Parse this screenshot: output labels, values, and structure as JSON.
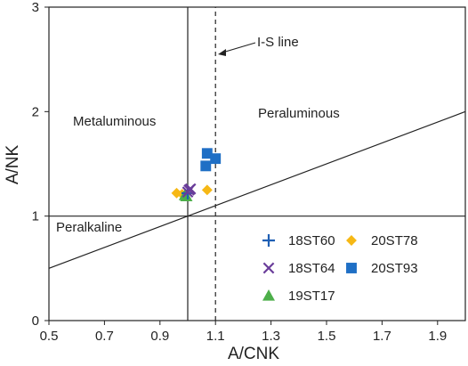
{
  "chart_data": {
    "type": "scatter",
    "xlabel": "A/CNK",
    "ylabel": "A/NK",
    "xlim": [
      0.5,
      2.0
    ],
    "ylim": [
      0,
      3
    ],
    "xticks": [
      0.5,
      0.7,
      0.9,
      1.1,
      1.3,
      1.5,
      1.7,
      1.9
    ],
    "yticks": [
      0,
      1,
      2,
      3
    ],
    "grid": false,
    "regions": {
      "metaluminous": "Metaluminous",
      "peraluminous": "Peraluminous",
      "peralkaline": "Peralkaline"
    },
    "lines": [
      {
        "name": "A/CNK=1",
        "x": [
          1.0,
          1.0
        ],
        "y": [
          0,
          3
        ]
      },
      {
        "name": "A/NK=1",
        "x": [
          0.5,
          2.0
        ],
        "y": [
          1,
          1
        ]
      },
      {
        "name": "diagonal",
        "x": [
          0.5,
          2.0
        ],
        "y": [
          0.5,
          2.0
        ]
      },
      {
        "name": "I-S line",
        "label": "I-S line",
        "x": [
          1.1,
          1.1
        ],
        "y": [
          0,
          3
        ],
        "dashed": true
      }
    ],
    "annotation": {
      "text": "I-S line",
      "text_at": [
        1.25,
        2.65
      ],
      "arrow_to": [
        1.105,
        2.55
      ]
    },
    "series": [
      {
        "name": "18ST60",
        "marker": "plus",
        "color": "#1f5fb4",
        "points": [
          [
            1.0,
            1.22
          ]
        ]
      },
      {
        "name": "18ST64",
        "marker": "x",
        "color": "#6a3d9a",
        "points": [
          [
            1.0,
            1.23
          ],
          [
            1.01,
            1.26
          ],
          [
            1.005,
            1.25
          ]
        ]
      },
      {
        "name": "19ST17",
        "marker": "triangle",
        "color": "#4daf4a",
        "points": [
          [
            0.995,
            1.19
          ],
          [
            0.99,
            1.2
          ]
        ]
      },
      {
        "name": "20ST78",
        "marker": "diamond",
        "color": "#f6b815",
        "points": [
          [
            0.96,
            1.22
          ],
          [
            0.98,
            1.21
          ],
          [
            1.07,
            1.25
          ]
        ]
      },
      {
        "name": "20ST93",
        "marker": "square",
        "color": "#1f6fc5",
        "points": [
          [
            1.07,
            1.6
          ],
          [
            1.065,
            1.48
          ],
          [
            1.1,
            1.55
          ]
        ]
      }
    ],
    "legend_position": "bottom-right"
  }
}
